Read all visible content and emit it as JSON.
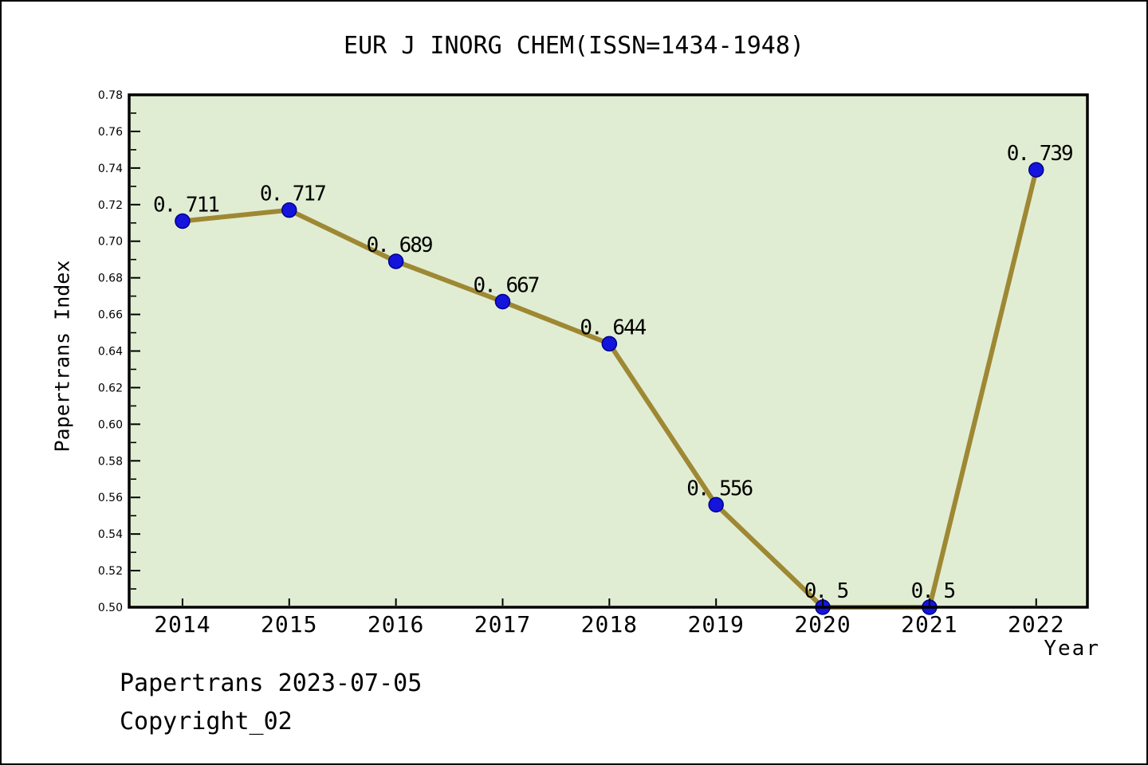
{
  "window": {
    "background": "#ffffff",
    "border_color": "#000000"
  },
  "title": "EUR J INORG CHEM(ISSN=1434-1948)",
  "footer": {
    "line1": "Papertrans 2023-07-05",
    "line2": "Copyright_02"
  },
  "chart_data": {
    "type": "line",
    "title": "EUR J INORG CHEM(ISSN=1434-1948)",
    "xlabel": "Year",
    "ylabel": "Papertrans Index",
    "x": [
      2014,
      2015,
      2016,
      2017,
      2018,
      2019,
      2020,
      2021,
      2022
    ],
    "series": [
      {
        "name": "Papertrans Index",
        "values": [
          0.711,
          0.717,
          0.689,
          0.667,
          0.644,
          0.556,
          0.5,
          0.5,
          0.739
        ]
      }
    ],
    "point_labels": [
      "0. 711",
      "0. 717",
      "0. 689",
      "0. 667",
      "0. 644",
      "0. 556",
      "0. 5",
      "0. 5",
      "0. 739"
    ],
    "x_tick_labels": [
      "2014",
      "2015",
      "2016",
      "2017",
      "2018",
      "2019",
      "2020",
      "2021",
      "2022"
    ],
    "y_ticks": [
      0.5,
      0.52,
      0.54,
      0.56,
      0.58,
      0.6,
      0.62,
      0.64,
      0.66,
      0.68,
      0.7,
      0.72,
      0.74,
      0.76,
      0.78
    ],
    "y_tick_labels": [
      "0.50",
      "0.52",
      "0.54",
      "0.56",
      "0.58",
      "0.60",
      "0.62",
      "0.64",
      "0.66",
      "0.68",
      "0.70",
      "0.72",
      "0.74",
      "0.76",
      "0.78"
    ],
    "y_minor_tick_step": 0.01,
    "xlim": [
      2013.5,
      2022.48
    ],
    "ylim": [
      0.5,
      0.78
    ],
    "grid": false,
    "legend": "none",
    "colors": {
      "line": "#9e8833",
      "marker": "#1414dd",
      "marker_edge": "#00008b",
      "plot_background": "#e1edd3",
      "axis": "#000000",
      "text": "#000000"
    }
  }
}
